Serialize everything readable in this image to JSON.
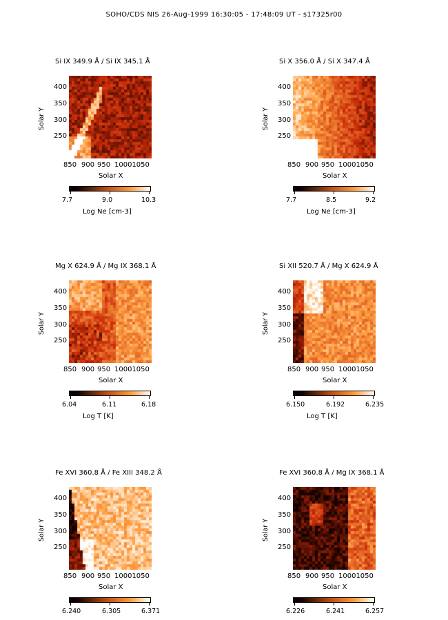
{
  "title": "SOHO/CDS NIS   26-Aug-1999 16:30:05 - 17:48:09 UT - s17325r00",
  "colors": {
    "map_dark": "#120200",
    "map_mid": "#b84a14",
    "map_light": "#ffffff",
    "colorbar_start": "#000000",
    "colorbar_end": "#ffffff"
  },
  "panels": [
    {
      "title": "Si IX  349.9 Å / Si IX  345.1 Å",
      "ylabel": "Solar Y",
      "xlabel": "Solar X",
      "yticks": [
        "400",
        "350",
        "300",
        "250"
      ],
      "xticks": [
        "850",
        "900",
        "950",
        "10001050"
      ],
      "colorbar": {
        "ticks": [
          "7.7",
          "9.0",
          "10.3"
        ],
        "label": "Log Ne [cm-3]"
      },
      "map_style": "speckled dark red map with bright streaks near left edge and a bright blob lower left",
      "brightness": 0.28
    },
    {
      "title": "Si X  356.0 Å / Si X  347.4 Å",
      "ylabel": "Solar Y",
      "xlabel": "Solar X",
      "yticks": [
        "400",
        "350",
        "300",
        "250"
      ],
      "xticks": [
        "850",
        "900",
        "950",
        "10001050"
      ],
      "colorbar": {
        "ticks": [
          "7.7",
          "8.5",
          "9.2"
        ],
        "label": "Log Ne [cm-3]"
      },
      "map_style": "light orange map with bright diagonal band on left, darker speckles on right",
      "brightness": 0.55
    },
    {
      "title": "Mg X  624.9 Å / Mg IX  368.1 Å",
      "ylabel": "Solar Y",
      "xlabel": "Solar X",
      "yticks": [
        "400",
        "350",
        "300",
        "250"
      ],
      "xticks": [
        "850",
        "900",
        "950",
        "10001050"
      ],
      "colorbar": {
        "ticks": [
          "6.04",
          "6.11",
          "6.18"
        ],
        "label": "Log  T  [K]"
      },
      "map_style": "mixed orange map with dark loops lower left, lighter right side",
      "brightness": 0.5
    },
    {
      "title": "Si XII  520.7 Å / Mg X  624.9 Å",
      "ylabel": "Solar Y",
      "xlabel": "Solar X",
      "yticks": [
        "400",
        "350",
        "300",
        "250"
      ],
      "xticks": [
        "850",
        "900",
        "950",
        "10001050"
      ],
      "colorbar": {
        "ticks": [
          "6.150",
          "6.192",
          "6.235"
        ],
        "label": "Log  T  [K]"
      },
      "map_style": "bright pale orange map with a dark patch along left edge",
      "brightness": 0.68
    },
    {
      "title": "Fe XVI  360.8 Å / Fe XIII  348.2 Å",
      "ylabel": "Solar Y",
      "xlabel": "Solar X",
      "yticks": [
        "400",
        "350",
        "300",
        "250"
      ],
      "xticks": [
        "850",
        "900",
        "950",
        "10001050"
      ],
      "colorbar": {
        "ticks": [
          "6.240",
          "6.305",
          "6.371"
        ],
        "label": ""
      },
      "map_style": "very light map, dark wedge along left edge, white blobs lower left",
      "brightness": 0.82
    },
    {
      "title": "Fe XVI  360.8 Å / Mg IX  368.1 Å",
      "ylabel": "Solar Y",
      "xlabel": "Solar X",
      "yticks": [
        "400",
        "350",
        "300",
        "250"
      ],
      "xticks": [
        "850",
        "900",
        "950",
        "10001050"
      ],
      "colorbar": {
        "ticks": [
          "6.226",
          "6.241",
          "6.257"
        ],
        "label": ""
      },
      "map_style": "mostly black map, small orange patch upper left, orange band on right",
      "brightness": 0.1
    }
  ]
}
